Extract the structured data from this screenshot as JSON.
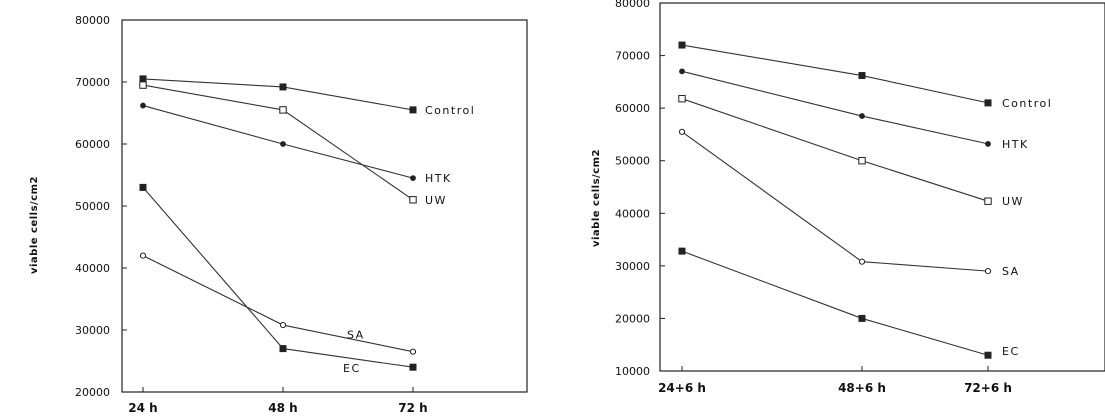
{
  "chart_data": [
    {
      "type": "line",
      "title": "",
      "xlabel": "",
      "ylabel": "viable cells/cm2",
      "categories": [
        "24 h",
        "48 h",
        "72 h"
      ],
      "ylim": [
        20000,
        80000
      ],
      "yticks": [
        20000,
        30000,
        40000,
        50000,
        60000,
        70000,
        80000
      ],
      "grid": false,
      "series": [
        {
          "name": "Control",
          "marker": "filled-square",
          "values": [
            70500,
            69200,
            65500
          ]
        },
        {
          "name": "HTK",
          "marker": "filled-dot",
          "values": [
            66200,
            60000,
            54500
          ]
        },
        {
          "name": "UW",
          "marker": "open-square",
          "values": [
            69500,
            65500,
            51000
          ]
        },
        {
          "name": "SA",
          "marker": "open-diamond",
          "values": [
            42000,
            30800,
            26500
          ]
        },
        {
          "name": "EC",
          "marker": "filled-square",
          "values": [
            53000,
            27000,
            24000
          ]
        }
      ]
    },
    {
      "type": "line",
      "title": "",
      "xlabel": "",
      "ylabel": "viable cells/cm2",
      "categories": [
        "24+6  h",
        "48+6  h",
        "72+6 h"
      ],
      "ylim": [
        10000,
        80000
      ],
      "yticks": [
        10000,
        20000,
        30000,
        40000,
        50000,
        60000,
        70000,
        80000
      ],
      "grid": false,
      "series": [
        {
          "name": "Control",
          "marker": "filled-square",
          "values": [
            72000,
            66200,
            61000
          ]
        },
        {
          "name": "HTK",
          "marker": "filled-dot",
          "values": [
            67000,
            58500,
            53200
          ]
        },
        {
          "name": "UW",
          "marker": "open-square",
          "values": [
            61800,
            50000,
            42300
          ]
        },
        {
          "name": "SA",
          "marker": "open-diamond",
          "values": [
            55500,
            30800,
            29000
          ]
        },
        {
          "name": "EC",
          "marker": "filled-square",
          "values": [
            32800,
            20000,
            13000
          ]
        }
      ]
    }
  ]
}
